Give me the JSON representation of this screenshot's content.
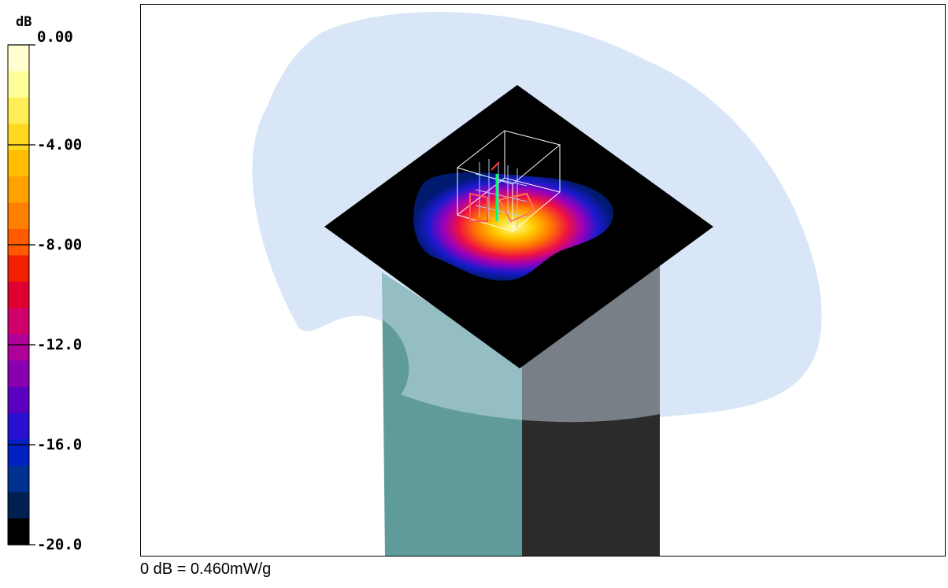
{
  "chart_data": {
    "type": "heatmap",
    "unit_label": "dB",
    "colorbar": {
      "ticks": [
        "0.00",
        "-4.00",
        "-8.00",
        "-12.0",
        "-16.0",
        "-20.0"
      ],
      "tick_values": [
        0,
        -4,
        -8,
        -12,
        -16,
        -20
      ],
      "range": [
        -20,
        0
      ],
      "colors_top_to_bottom": [
        "#ffffd0",
        "#ffff9a",
        "#ffee55",
        "#ffd820",
        "#ffbe00",
        "#ffa200",
        "#ff8000",
        "#ff5a00",
        "#f02000",
        "#e00030",
        "#d0006a",
        "#b0009a",
        "#8a00b0",
        "#5a00c0",
        "#2a10d0",
        "#0020c0",
        "#003090",
        "#002050",
        "#000000"
      ]
    },
    "reference": "0 dB = 0.460mW/g"
  }
}
